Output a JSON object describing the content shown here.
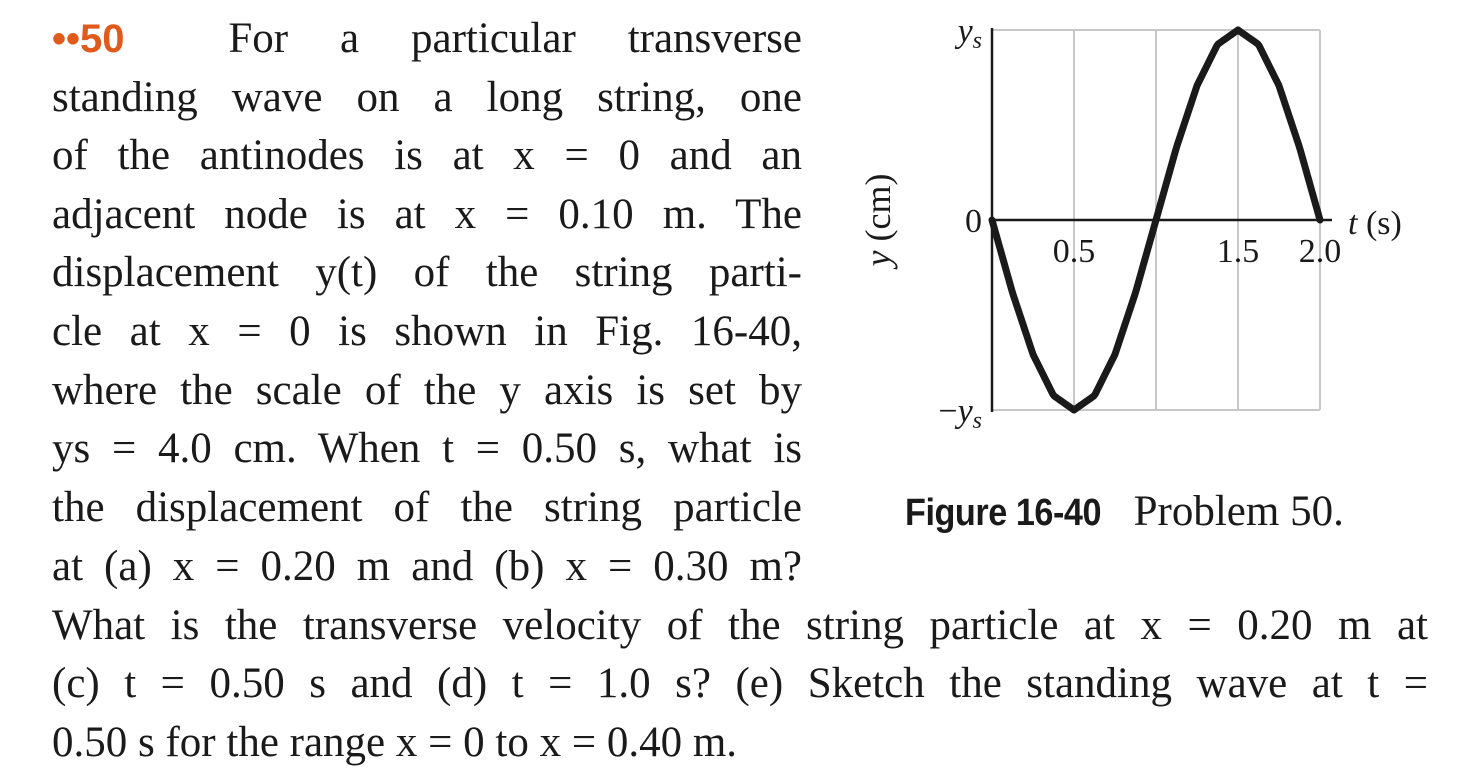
{
  "problem": {
    "number": "••50",
    "lines_narrow": [
      "For a particular transverse",
      "standing wave on a long string, one",
      "of the antinodes is at x = 0 and an",
      "adjacent node is at x = 0.10 m. The",
      "displacement y(t) of the string parti-",
      "cle at x = 0 is shown in Fig. 16-40,",
      "where the scale of the y axis is set by",
      "ys = 4.0 cm. When t = 0.50 s, what is",
      "the displacement of the string particle",
      "at (a) x = 0.20 m and (b) x = 0.30 m?"
    ],
    "lines_wide": [
      "What is the transverse velocity of the string particle at x = 0.20 m at",
      "(c) t = 0.50 s and (d) t = 1.0 s? (e) Sketch the standing wave at t =",
      "0.50 s for the range x = 0 to x = 0.40 m."
    ]
  },
  "figure": {
    "label": "Figure 16-40",
    "caption": "Problem 50."
  },
  "chart_data": {
    "type": "line",
    "xlabel": "t (s)",
    "ylabel": "y (cm)",
    "x_tick_labels": [
      "0.5",
      "1.5",
      "2.0"
    ],
    "y_tick_labels": [
      "ys",
      "0",
      "−ys"
    ],
    "xlim": [
      0,
      2.0
    ],
    "ylim": [
      -1,
      1
    ],
    "grid": true,
    "series": [
      {
        "x": [
          0,
          0.125,
          0.25,
          0.375,
          0.5,
          0.625,
          0.75,
          0.875,
          1.0,
          1.125,
          1.25,
          1.375,
          1.5,
          1.625,
          1.75,
          1.875,
          2.0
        ],
        "y": [
          0,
          -0.383,
          -0.707,
          -0.924,
          -1,
          -0.924,
          -0.707,
          -0.383,
          0,
          0.383,
          0.707,
          0.924,
          1,
          0.924,
          0.707,
          0.383,
          0
        ]
      }
    ]
  }
}
